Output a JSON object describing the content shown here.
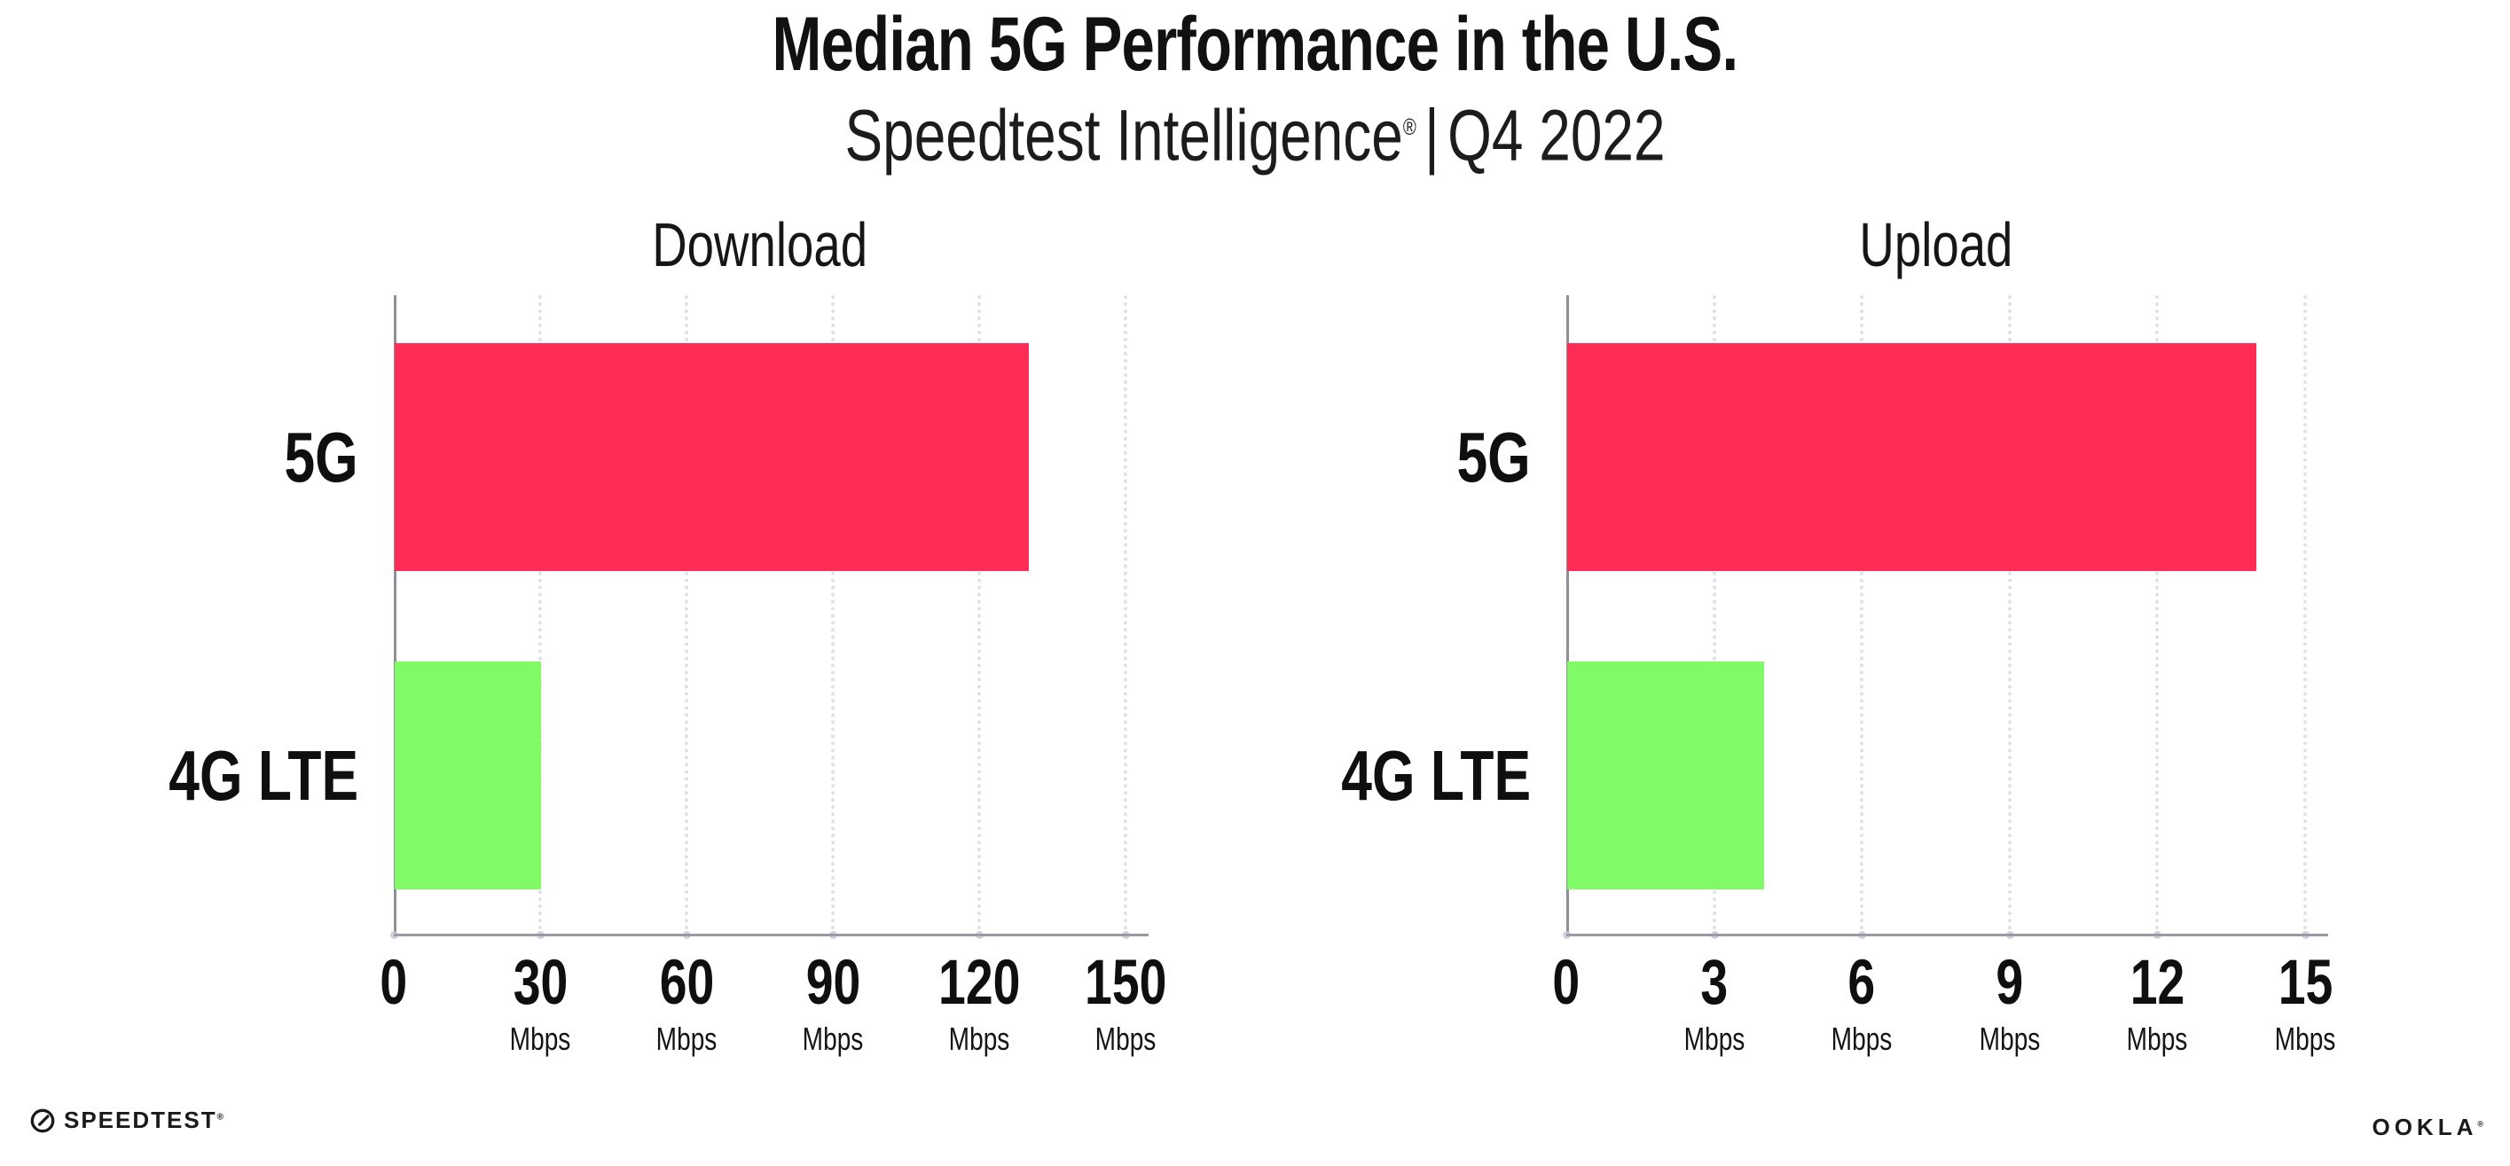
{
  "header": {
    "title": "Median 5G Performance in the U.S.",
    "subtitle": {
      "brand": "Speedtest Intelligence",
      "registered": "®",
      "separator": "|",
      "period": "Q4 2022"
    }
  },
  "chart_data": [
    {
      "type": "bar",
      "orientation": "horizontal",
      "title": "Download",
      "categories": [
        "5G",
        "4G LTE"
      ],
      "values": [
        130,
        30
      ],
      "unit_label": "Mbps",
      "xlabel": "",
      "ylabel": "",
      "xlim": [
        0,
        150
      ],
      "xticks": [
        0,
        30,
        60,
        90,
        120,
        150
      ],
      "grid": "vertical-dotted",
      "legend": "none",
      "bar_colors": [
        "#FF2D55",
        "#80FA66"
      ]
    },
    {
      "type": "bar",
      "orientation": "horizontal",
      "title": "Upload",
      "categories": [
        "5G",
        "4G LTE"
      ],
      "values": [
        14,
        4
      ],
      "unit_label": "Mbps",
      "xlabel": "",
      "ylabel": "",
      "xlim": [
        0,
        15
      ],
      "xticks": [
        0,
        3,
        6,
        9,
        12,
        15
      ],
      "grid": "vertical-dotted",
      "legend": "none",
      "bar_colors": [
        "#FF2D55",
        "#80FA66"
      ]
    }
  ],
  "footer": {
    "speedtest": {
      "label": "SPEEDTEST",
      "registered": "®"
    },
    "ookla": {
      "label": "OOKLA",
      "registered": "®"
    }
  },
  "colors": {
    "background": "#ffffff",
    "bar_5g": "#FF2D55",
    "bar_4g_lte": "#80FA66",
    "y_axis_line": "#8f8f97",
    "x_axis_line": "#9a9aa2",
    "gridline": "#e0e0ea",
    "text": "#111111"
  }
}
